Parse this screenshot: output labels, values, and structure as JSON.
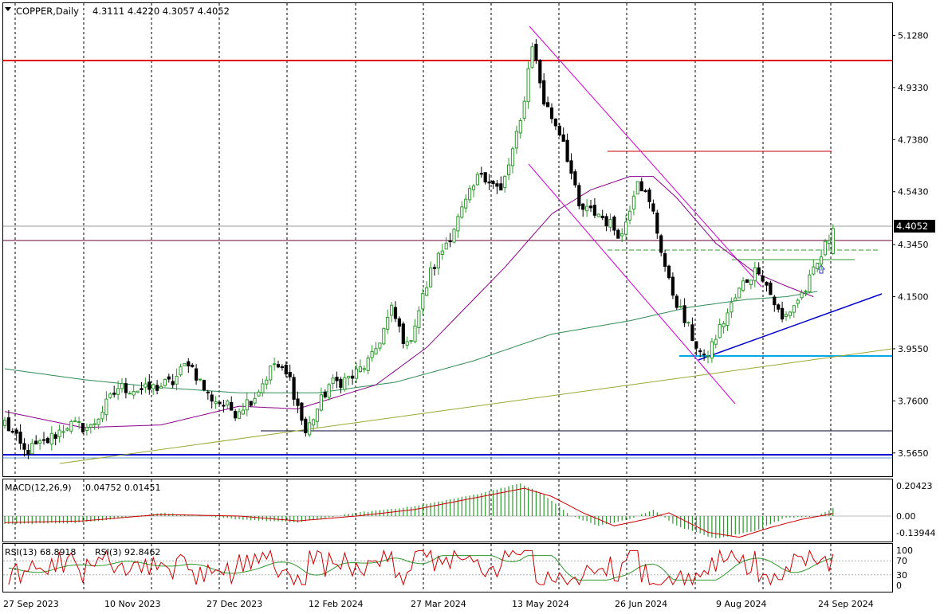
{
  "header": {
    "symbol": "COPPER",
    "timeframe": "Daily",
    "title": "COPPER,Daily",
    "ohlc": "4.3111 4.4220 4.3057 4.4052"
  },
  "chart_data": [
    {
      "type": "candlestick",
      "title": "COPPER,Daily 4.3111 4.4220 4.3057 4.4052",
      "ylim": [
        3.52,
        5.22
      ],
      "y_ticks": [
        "5.1280",
        "4.9330",
        "4.7380",
        "4.5430",
        "4.3450",
        "4.1500",
        "3.9550",
        "3.7600",
        "3.5650"
      ],
      "x_ticks": [
        "27 Sep 2023",
        "10 Nov 2023",
        "27 Dec 2023",
        "12 Feb 2024",
        "27 Mar 2024",
        "13 May 2024",
        "26 Jun 2024",
        "9 Aug 2024",
        "24 Sep 2024"
      ],
      "current_price": "4.4052",
      "colors": {
        "bull": "#2e9a2e",
        "bear": "#000000",
        "ma_fast": "#8b008b",
        "ma_slow": "#2e8b57",
        "resistance": "#dd0000",
        "support": "#0000cc"
      },
      "close_anchors": [
        [
          0,
          3.68
        ],
        [
          5,
          3.57
        ],
        [
          10,
          3.6
        ],
        [
          16,
          3.67
        ],
        [
          22,
          3.66
        ],
        [
          29,
          3.81
        ],
        [
          36,
          3.8
        ],
        [
          43,
          3.83
        ],
        [
          47,
          3.91
        ],
        [
          52,
          3.78
        ],
        [
          59,
          3.72
        ],
        [
          64,
          3.78
        ],
        [
          69,
          3.9
        ],
        [
          73,
          3.84
        ],
        [
          77,
          3.64
        ],
        [
          83,
          3.82
        ],
        [
          89,
          3.85
        ],
        [
          94,
          3.92
        ],
        [
          99,
          4.1
        ],
        [
          103,
          3.96
        ],
        [
          109,
          4.24
        ],
        [
          116,
          4.44
        ],
        [
          122,
          4.62
        ],
        [
          127,
          4.54
        ],
        [
          132,
          4.8
        ],
        [
          135,
          5.1
        ],
        [
          138,
          4.88
        ],
        [
          143,
          4.74
        ],
        [
          147,
          4.48
        ],
        [
          152,
          4.46
        ],
        [
          158,
          4.38
        ],
        [
          162,
          4.6
        ],
        [
          166,
          4.46
        ],
        [
          170,
          4.2
        ],
        [
          174,
          4.06
        ],
        [
          179,
          3.91
        ],
        [
          184,
          4.06
        ],
        [
          189,
          4.2
        ],
        [
          193,
          4.26
        ],
        [
          199,
          4.06
        ],
        [
          205,
          4.18
        ],
        [
          208,
          4.27
        ],
        [
          212,
          4.405
        ]
      ],
      "ma_fast": {
        "name": "MA (purple)",
        "points": [
          [
            0,
            3.72
          ],
          [
            20,
            3.66
          ],
          [
            40,
            3.67
          ],
          [
            60,
            3.74
          ],
          [
            75,
            3.73
          ],
          [
            95,
            3.82
          ],
          [
            108,
            3.96
          ],
          [
            128,
            4.26
          ],
          [
            140,
            4.46
          ],
          [
            150,
            4.55
          ],
          [
            160,
            4.6
          ],
          [
            166,
            4.6
          ],
          [
            172,
            4.52
          ],
          [
            182,
            4.35
          ],
          [
            192,
            4.24
          ],
          [
            200,
            4.19
          ],
          [
            207,
            4.15
          ]
        ]
      },
      "ma_slow": {
        "name": "MA (green)",
        "points": [
          [
            0,
            3.88
          ],
          [
            20,
            3.84
          ],
          [
            40,
            3.81
          ],
          [
            60,
            3.79
          ],
          [
            80,
            3.79
          ],
          [
            100,
            3.83
          ],
          [
            120,
            3.91
          ],
          [
            140,
            4.01
          ],
          [
            160,
            4.06
          ],
          [
            175,
            4.11
          ],
          [
            190,
            4.14
          ],
          [
            200,
            4.15
          ],
          [
            208,
            4.17
          ]
        ]
      },
      "macd": {
        "label": "MACD(12,26,9)",
        "values_text": "0.04752 0.01451",
        "y_ticks": [
          "0.20423",
          "0.00",
          "-0.13944"
        ],
        "hist_anchors": [
          [
            0,
            -0.05
          ],
          [
            20,
            -0.04
          ],
          [
            40,
            0.02
          ],
          [
            60,
            -0.02
          ],
          [
            75,
            -0.04
          ],
          [
            90,
            0.02
          ],
          [
            105,
            0.06
          ],
          [
            120,
            0.13
          ],
          [
            132,
            0.2
          ],
          [
            138,
            0.13
          ],
          [
            145,
            0.0
          ],
          [
            152,
            -0.06
          ],
          [
            160,
            -0.02
          ],
          [
            166,
            0.04
          ],
          [
            172,
            -0.06
          ],
          [
            182,
            -0.14
          ],
          [
            192,
            -0.09
          ],
          [
            200,
            -0.01
          ],
          [
            208,
            0.0
          ],
          [
            212,
            0.048
          ]
        ],
        "signal_anchors": [
          [
            0,
            -0.04
          ],
          [
            20,
            -0.03
          ],
          [
            40,
            0.01
          ],
          [
            60,
            0.0
          ],
          [
            75,
            -0.03
          ],
          [
            90,
            0.0
          ],
          [
            105,
            0.04
          ],
          [
            120,
            0.11
          ],
          [
            133,
            0.17
          ],
          [
            140,
            0.12
          ],
          [
            148,
            0.02
          ],
          [
            156,
            -0.06
          ],
          [
            164,
            -0.02
          ],
          [
            170,
            0.02
          ],
          [
            180,
            -0.1
          ],
          [
            188,
            -0.13
          ],
          [
            196,
            -0.07
          ],
          [
            204,
            -0.02
          ],
          [
            212,
            0.015
          ]
        ]
      },
      "rsi": {
        "label_fast": "RSI(13) 68.8918",
        "label_slow": "RSI(3) 92.8462",
        "y_ticks": [
          "100",
          "70",
          "30",
          "0"
        ],
        "fast_color": "#cc0000",
        "slow_color": "#2e9a2e"
      }
    }
  ]
}
